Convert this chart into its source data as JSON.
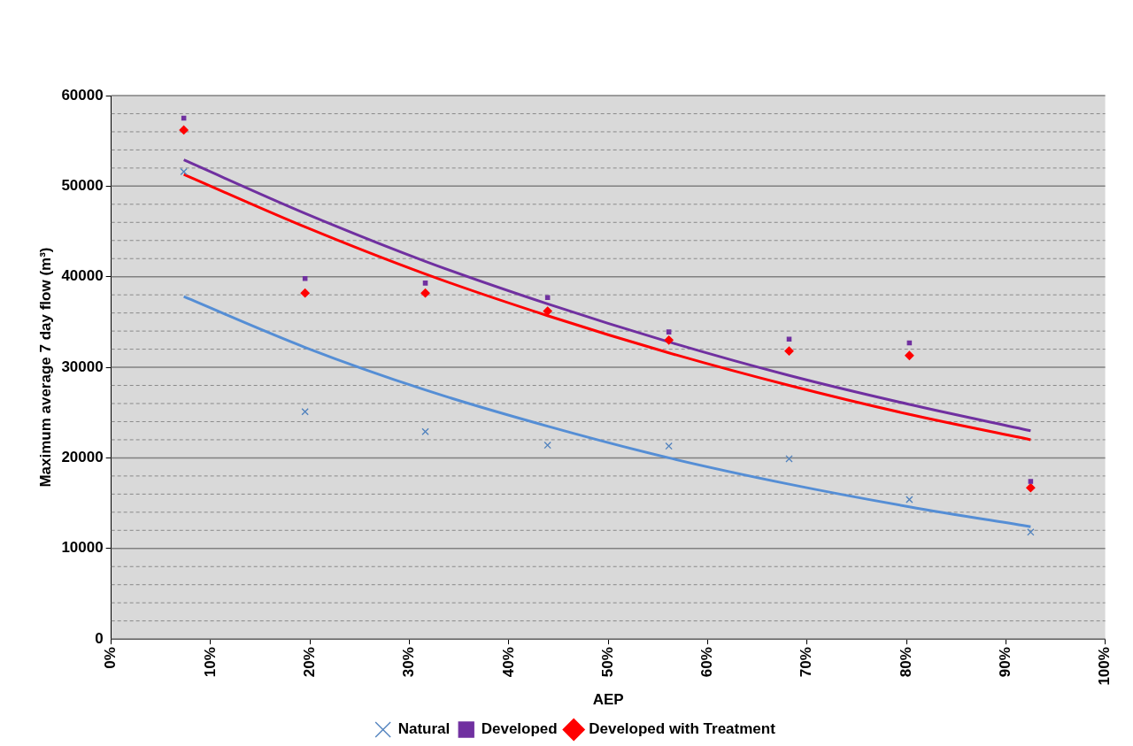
{
  "chart_data": {
    "type": "scatter",
    "xlabel": "AEP",
    "ylabel": "Maximum average 7 day flow (m³)",
    "xlim": [
      0,
      100
    ],
    "xticks": [
      {
        "value": 0,
        "label": "0%"
      },
      {
        "value": 10,
        "label": "10%"
      },
      {
        "value": 20,
        "label": "20%"
      },
      {
        "value": 30,
        "label": "30%"
      },
      {
        "value": 40,
        "label": "40%"
      },
      {
        "value": 50,
        "label": "50%"
      },
      {
        "value": 60,
        "label": "60%"
      },
      {
        "value": 70,
        "label": "70%"
      },
      {
        "value": 80,
        "label": "80%"
      },
      {
        "value": 90,
        "label": "90%"
      },
      {
        "value": 100,
        "label": "100%"
      }
    ],
    "ylim": [
      0,
      60000
    ],
    "yticks": [
      0,
      {
        "value": 2000,
        "label": null
      },
      {
        "value": 4000,
        "label": null
      },
      {
        "value": 6000,
        "label": null
      },
      {
        "value": 8000,
        "label": null
      },
      10000,
      {
        "value": 12000,
        "label": null
      },
      {
        "value": 14000,
        "label": null
      },
      {
        "value": 16000,
        "label": null
      },
      {
        "value": 18000,
        "label": null
      },
      20000,
      {
        "value": 22000,
        "label": null
      },
      {
        "value": 24000,
        "label": null
      },
      {
        "value": 26000,
        "label": null
      },
      {
        "value": 28000,
        "label": null
      },
      30000,
      {
        "value": 32000,
        "label": null
      },
      {
        "value": 34000,
        "label": null
      },
      {
        "value": 36000,
        "label": null
      },
      {
        "value": 38000,
        "label": null
      },
      40000,
      {
        "value": 42000,
        "label": null
      },
      {
        "value": 44000,
        "label": null
      },
      {
        "value": 46000,
        "label": null
      },
      {
        "value": 48000,
        "label": null
      },
      50000,
      {
        "value": 52000,
        "label": null
      },
      {
        "value": 54000,
        "label": null
      },
      {
        "value": 56000,
        "label": null
      },
      {
        "value": 58000,
        "label": null
      },
      60000
    ],
    "grid": "y",
    "legend": "bottom",
    "x": [
      7.3,
      19.5,
      31.6,
      43.9,
      56.1,
      68.2,
      80.3,
      92.5
    ],
    "series": [
      {
        "name": "Natural",
        "marker": "cross",
        "color": "#4f81bd",
        "values": [
          51600,
          25100,
          22900,
          21400,
          21300,
          19900,
          15400,
          11800
        ]
      },
      {
        "name": "Developed",
        "marker": "square",
        "color": "#7030a0",
        "values": [
          57500,
          39800,
          39300,
          37700,
          33900,
          33100,
          32700,
          17400
        ]
      },
      {
        "name": "Developed with Treatment",
        "marker": "diamond",
        "color": "#ff0000",
        "values": [
          56200,
          38200,
          38200,
          36200,
          33000,
          31800,
          31300,
          16700
        ]
      },
      {
        "type": "line",
        "marker": "none",
        "color": "#558ed5",
        "values": [
          37800,
          32200,
          27500,
          23500,
          20000,
          17100,
          14600,
          12400
        ]
      },
      {
        "type": "line",
        "marker": "none",
        "color": "#7030a0",
        "values": [
          52900,
          47000,
          41700,
          37000,
          32800,
          29100,
          25900,
          23000
        ]
      },
      {
        "type": "line",
        "marker": "none",
        "color": "#ff0000",
        "values": [
          51300,
          45500,
          40300,
          35700,
          31600,
          28000,
          24800,
          22000
        ]
      }
    ]
  }
}
